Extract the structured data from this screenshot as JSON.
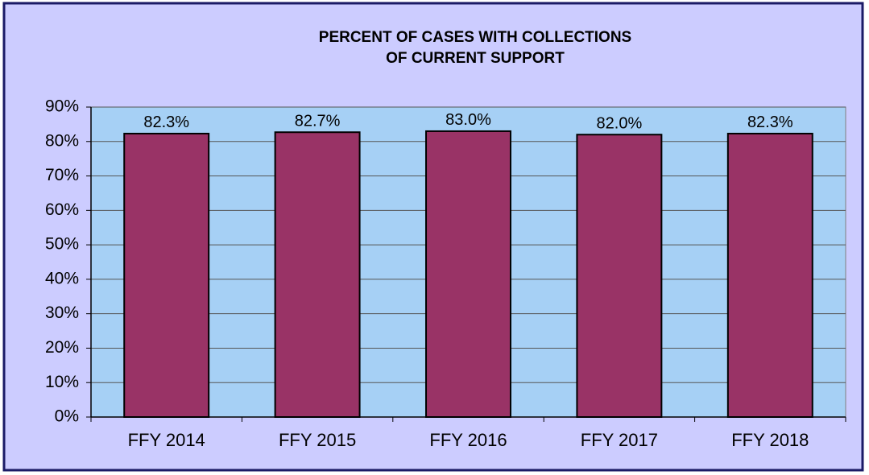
{
  "chart_data": {
    "type": "bar",
    "title": [
      "PERCENT OF CASES WITH COLLECTIONS",
      "OF CURRENT SUPPORT"
    ],
    "categories": [
      "FFY 2014",
      "FFY 2015",
      "FFY 2016",
      "FFY 2017",
      "FFY 2018"
    ],
    "values": [
      82.3,
      82.7,
      83.0,
      82.0,
      82.3
    ],
    "value_labels": [
      "82.3%",
      "82.7%",
      "83.0%",
      "82.0%",
      "82.3%"
    ],
    "color": "#993366",
    "ylim": [
      0,
      90
    ],
    "yticks": [
      {
        "value": 0,
        "label": "0%"
      },
      {
        "value": 10,
        "label": "10%"
      },
      {
        "value": 20,
        "label": "20%"
      },
      {
        "value": 30,
        "label": "30%"
      },
      {
        "value": 40,
        "label": "40%"
      },
      {
        "value": 50,
        "label": "50%"
      },
      {
        "value": 60,
        "label": "60%"
      },
      {
        "value": 70,
        "label": "70%"
      },
      {
        "value": 80,
        "label": "80%"
      },
      {
        "value": 90,
        "label": "90%"
      }
    ],
    "grid": true
  }
}
